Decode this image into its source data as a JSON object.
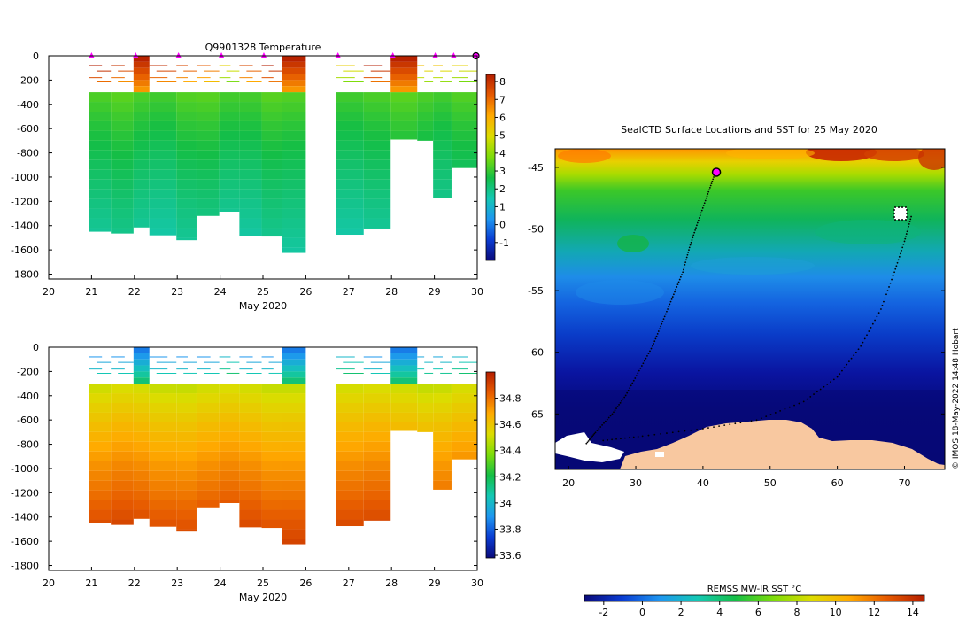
{
  "chart_data": [
    {
      "type": "heatmap",
      "title": "Q9901328  Temperature",
      "xlabel": "May 2020",
      "ylabel": "",
      "x_ticks": [
        "20",
        "21",
        "22",
        "23",
        "24",
        "25",
        "26",
        "27",
        "28",
        "29",
        "30"
      ],
      "xlim": [
        20,
        30
      ],
      "y_ticks": [
        "0",
        "-200",
        "-400",
        "-600",
        "-800",
        "-1000",
        "-1200",
        "-1400",
        "-1600",
        "-1800"
      ],
      "ylim": [
        -1840,
        0
      ],
      "colorbar": {
        "min": -2,
        "max": 8.4,
        "ticks": [
          "-1",
          "0",
          "1",
          "2",
          "3",
          "4",
          "5",
          "6",
          "7",
          "8"
        ]
      },
      "profile_times": [
        20.95,
        21.45,
        21.98,
        22.35,
        22.98,
        23.45,
        23.98,
        24.45,
        24.97,
        25.45,
        26.7,
        27.35,
        27.98,
        28.6,
        28.97,
        29.4
      ],
      "profile_bottoms": [
        -1450,
        -1465,
        -1415,
        -1480,
        -1520,
        -1320,
        -1285,
        -1485,
        -1490,
        -1625,
        -1475,
        -1430,
        -690,
        -700,
        -1175,
        -925
      ],
      "profile_surface": [
        8.5,
        8.0,
        8.5,
        8.1,
        7.6,
        7.2,
        5.2,
        7.6,
        8.4,
        8.5,
        5.3,
        8.4,
        8.5,
        5.6,
        5.5,
        5.2
      ],
      "gap_start": 26.0,
      "gap_end": 26.7,
      "palette": [
        "#0a0a7a",
        "#0a3cd2",
        "#1e96f0",
        "#14c8b4",
        "#14be46",
        "#7ddc0a",
        "#dcdc00",
        "#ffaa00",
        "#e65a00",
        "#b41e00"
      ]
    },
    {
      "type": "heatmap",
      "title": "",
      "xlabel": "May 2020",
      "ylabel": "",
      "x_ticks": [
        "20",
        "21",
        "22",
        "23",
        "24",
        "25",
        "26",
        "27",
        "28",
        "29",
        "30"
      ],
      "xlim": [
        20,
        30
      ],
      "y_ticks": [
        "0",
        "-200",
        "-400",
        "-600",
        "-800",
        "-1000",
        "-1200",
        "-1400",
        "-1600",
        "-1800"
      ],
      "ylim": [
        -1840,
        0
      ],
      "colorbar": {
        "min": 33.58,
        "max": 35.0,
        "ticks": [
          "33.6",
          "33.8",
          "34",
          "34.2",
          "34.4",
          "34.6",
          "34.8"
        ]
      },
      "profile_times": [
        20.95,
        21.45,
        21.98,
        22.35,
        22.98,
        23.45,
        23.98,
        24.45,
        24.97,
        25.45,
        26.7,
        27.35,
        27.98,
        28.6,
        28.97,
        29.4
      ],
      "profile_bottoms": [
        -1450,
        -1465,
        -1415,
        -1480,
        -1520,
        -1320,
        -1285,
        -1485,
        -1490,
        -1625,
        -1475,
        -1430,
        -690,
        -700,
        -1175,
        -925
      ],
      "profile_surface": [
        33.9,
        33.9,
        33.9,
        33.9,
        33.9,
        33.9,
        34.0,
        33.9,
        33.9,
        33.9,
        34.0,
        33.9,
        33.9,
        33.95,
        33.95,
        34.0
      ],
      "palette": [
        "#0a0a7a",
        "#0a3cd2",
        "#1e96f0",
        "#14c8b4",
        "#14be46",
        "#7ddc0a",
        "#dcdc00",
        "#ffaa00",
        "#e65a00",
        "#b41e00"
      ]
    },
    {
      "type": "heatmap",
      "title": "SealCTD Surface Locations and SST for 25 May 2020",
      "xlabel": "",
      "ylabel": "",
      "x_ticks": [
        "20",
        "30",
        "40",
        "50",
        "60",
        "70"
      ],
      "xlim": [
        18,
        76
      ],
      "y_ticks": [
        "-45",
        "-50",
        "-55",
        "-60",
        "-65"
      ],
      "ylim": [
        -69.5,
        -43.5
      ],
      "colorbar_label": "REMSS MW-IR SST °C",
      "colorbar": {
        "min": -3,
        "max": 14.6,
        "ticks": [
          "-2",
          "0",
          "2",
          "4",
          "6",
          "8",
          "10",
          "12",
          "14"
        ]
      },
      "credit": "© IMOS 18-May-2022 14:48 Hobart",
      "track_west": [
        [
          41.6,
          -45.8
        ],
        [
          40.5,
          -47.5
        ],
        [
          39.2,
          -49.5
        ],
        [
          38.0,
          -51.5
        ],
        [
          37.0,
          -53.5
        ],
        [
          35.5,
          -55.5
        ],
        [
          34.0,
          -57.5
        ],
        [
          32.5,
          -59.5
        ],
        [
          30.5,
          -61.5
        ],
        [
          28.5,
          -63.5
        ],
        [
          26.5,
          -65.0
        ],
        [
          24.0,
          -66.5
        ],
        [
          22.5,
          -67.5
        ]
      ],
      "track_east": [
        [
          71.0,
          -49.0
        ],
        [
          70.0,
          -51.0
        ],
        [
          68.5,
          -53.5
        ],
        [
          66.5,
          -56.5
        ],
        [
          63.5,
          -59.5
        ],
        [
          60.0,
          -62.0
        ],
        [
          55.0,
          -64.0
        ],
        [
          48.0,
          -65.5
        ],
        [
          40.0,
          -66.2
        ],
        [
          31.0,
          -66.8
        ],
        [
          24.5,
          -67.2
        ]
      ],
      "current_position": [
        42.0,
        -45.4
      ]
    }
  ]
}
